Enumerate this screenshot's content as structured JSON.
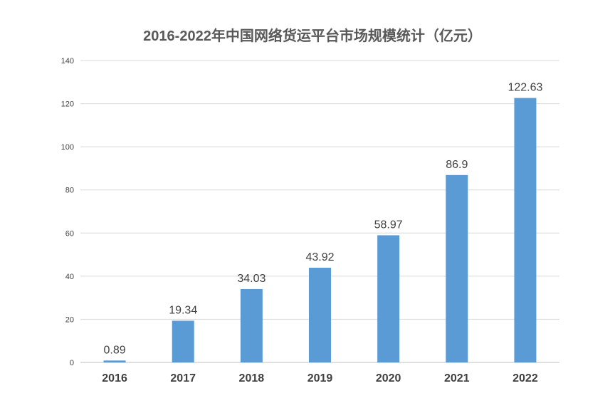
{
  "chart_data": {
    "type": "bar",
    "title": "2016-2022年中国网络货运平台市场规模统计（亿元）",
    "categories": [
      "2016",
      "2017",
      "2018",
      "2019",
      "2020",
      "2021",
      "2022"
    ],
    "values": [
      0.89,
      19.34,
      34.03,
      43.92,
      58.97,
      86.9,
      122.63
    ],
    "value_labels": [
      "0.89",
      "19.34",
      "34.03",
      "43.92",
      "58.97",
      "86.9",
      "122.63"
    ],
    "yticks": [
      0,
      20,
      40,
      60,
      80,
      100,
      120,
      140
    ],
    "ylim": [
      0,
      140
    ],
    "grid": true,
    "legend": "none",
    "bar_color": "#5B9BD5"
  }
}
